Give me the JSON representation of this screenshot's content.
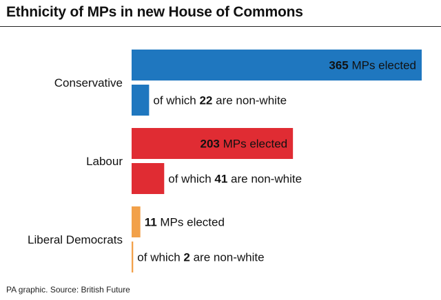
{
  "header": {
    "title": "Ethnicity of MPs in new House of Commons"
  },
  "footer": {
    "source": "PA graphic. Source: British Future"
  },
  "chart_data": {
    "type": "bar",
    "orientation": "horizontal",
    "title": "Ethnicity of MPs in new House of Commons",
    "categories": [
      "Conservative",
      "Labour",
      "Liberal Democrats"
    ],
    "series": [
      {
        "label_template": "{v} MPs elected",
        "values": [
          365,
          203,
          11
        ]
      },
      {
        "label_template": "of which {v} are non-white",
        "values": [
          22,
          41,
          2
        ]
      }
    ],
    "colors": {
      "Conservative": "#1f77bf",
      "Labour": "#e02c33",
      "Liberal Democrats": "#f2a14a"
    },
    "xlim": [
      0,
      365
    ],
    "grid": false,
    "legend": "none"
  }
}
